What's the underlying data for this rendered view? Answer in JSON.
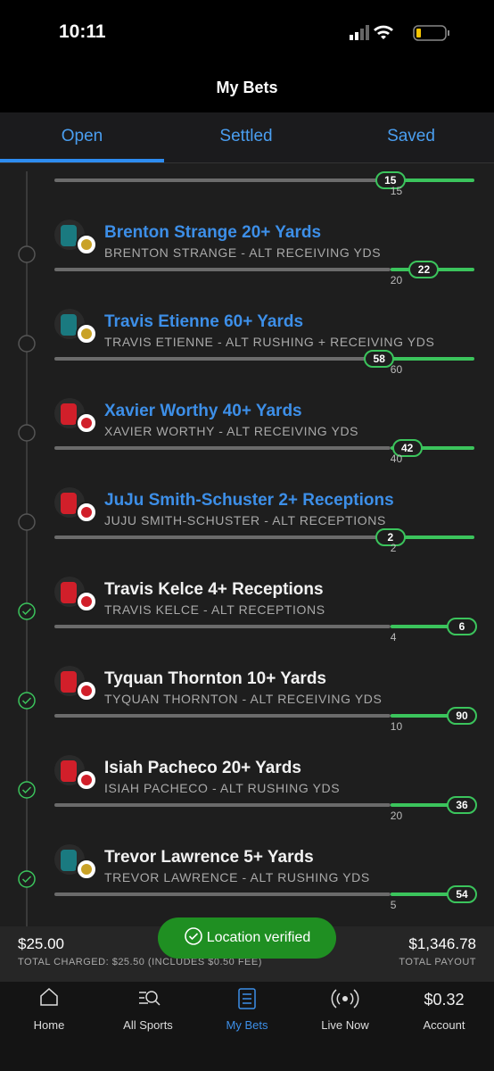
{
  "status_bar": {
    "time": "10:11"
  },
  "header": {
    "title": "My Bets"
  },
  "tabs": [
    "Open",
    "Settled",
    "Saved"
  ],
  "legs": [
    {
      "current": 15,
      "target": 15
    },
    {
      "title": "Brenton Strange 20+ Yards",
      "subtitle": "BRENTON STRANGE - ALT RECEIVING YDS",
      "current": 22,
      "target": 20
    },
    {
      "title": "Travis Etienne 60+ Yards",
      "subtitle": "TRAVIS ETIENNE - ALT RUSHING + RECEIVING YDS",
      "current": 58,
      "target": 60
    },
    {
      "title": "Xavier Worthy 40+ Yards",
      "subtitle": "XAVIER WORTHY - ALT RECEIVING YDS",
      "current": 42,
      "target": 40
    },
    {
      "title": "JuJu Smith-Schuster 2+ Receptions",
      "subtitle": "JUJU SMITH-SCHUSTER - ALT RECEPTIONS",
      "current": 2,
      "target": 2
    },
    {
      "title": "Travis Kelce 4+ Receptions",
      "subtitle": "TRAVIS KELCE - ALT RECEPTIONS",
      "current": 6,
      "target": 4
    },
    {
      "title": "Tyquan Thornton 10+ Yards",
      "subtitle": "TYQUAN THORNTON - ALT RECEIVING YDS",
      "current": 90,
      "target": 10
    },
    {
      "title": "Isiah Pacheco 20+ Yards",
      "subtitle": "ISIAH PACHECO - ALT RUSHING YDS",
      "current": 36,
      "target": 20
    },
    {
      "title": "Trevor Lawrence 5+ Yards",
      "subtitle": "TREVOR LAWRENCE - ALT RUSHING YDS",
      "current": 54,
      "target": 5
    }
  ],
  "footer": {
    "stake": "$25.00",
    "stake_label": "TOTAL CHARGED: $25.50 (INCLUDES $0.50 FEE)",
    "payout": "$1,346.78",
    "payout_label": "TOTAL PAYOUT"
  },
  "toast": "Location verified",
  "nav": [
    "Home",
    "All Sports",
    "My Bets",
    "Live Now"
  ],
  "account": {
    "balance": "$0.32",
    "label": "Account"
  }
}
